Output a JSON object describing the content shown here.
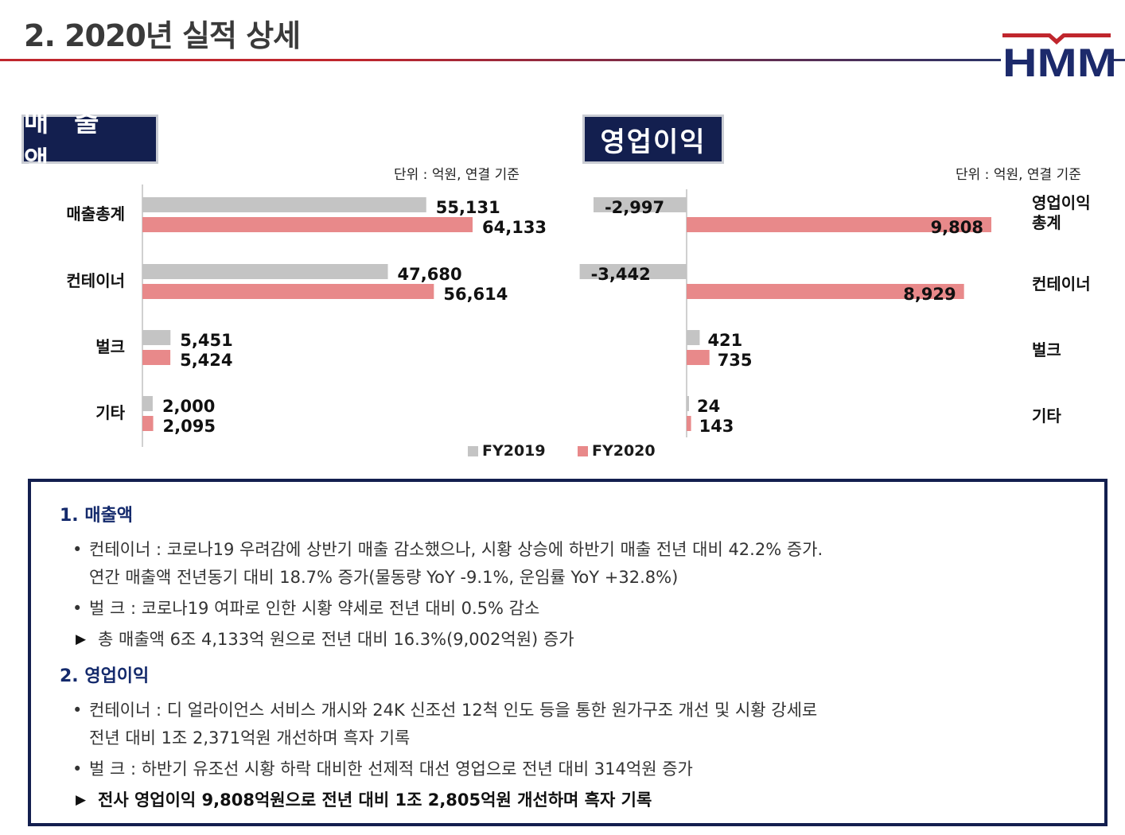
{
  "page": {
    "title": "2. 2020년 실적 상세"
  },
  "logo": {
    "text": "HMM",
    "colors": {
      "navy": "#1c2a6b",
      "red": "#c0262d"
    }
  },
  "colors": {
    "fy2019": "#c4c4c4",
    "fy2020": "#e8898a",
    "navy": "#131f4f"
  },
  "legend": {
    "fy2019": "FY2019",
    "fy2020": "FY2020"
  },
  "chart_data": [
    {
      "type": "bar",
      "orientation": "horizontal",
      "section_label": "매 출 액",
      "unit_note": "단위 : 억원, 연결 기준",
      "categories": [
        "매출총계",
        "컨테이너",
        "벌크",
        "기타"
      ],
      "series": [
        {
          "name": "FY2019",
          "values": [
            55131,
            47680,
            5451,
            2000
          ]
        },
        {
          "name": "FY2020",
          "values": [
            64133,
            56614,
            5424,
            2095
          ]
        }
      ],
      "value_labels": {
        "FY2019": [
          "55,131",
          "47,680",
          "5,451",
          "2,000"
        ],
        "FY2020": [
          "64,133",
          "56,614",
          "5,424",
          "2,095"
        ]
      },
      "xlim": [
        0,
        65000
      ],
      "grid": false,
      "legend_position": "bottom"
    },
    {
      "type": "bar",
      "orientation": "horizontal",
      "section_label": "영업이익",
      "unit_note": "단위 : 억원, 연결 기준",
      "categories": [
        "영업이익 총계",
        "컨테이너",
        "벌크",
        "기타"
      ],
      "category_lines": [
        [
          "영업이익",
          "총계"
        ],
        [
          "컨테이너"
        ],
        [
          "벌크"
        ],
        [
          "기타"
        ]
      ],
      "series": [
        {
          "name": "FY2019",
          "values": [
            -2997,
            -3442,
            421,
            24
          ]
        },
        {
          "name": "FY2020",
          "values": [
            9808,
            8929,
            735,
            143
          ]
        }
      ],
      "value_labels": {
        "FY2019": [
          "-2,997",
          "-3,442",
          "421",
          "24"
        ],
        "FY2020": [
          "9,808",
          "8,929",
          "735",
          "143"
        ]
      },
      "xlim": [
        -3500,
        10000
      ],
      "grid": false,
      "legend_position": "bottom"
    }
  ],
  "summary": {
    "revenue": {
      "heading": "1. 매출액",
      "bullets": [
        {
          "line1": "컨테이너 : 코로나19 우려감에 상반기 매출 감소했으나, 시황 상승에 하반기 매출 전년 대비 42.2% 증가.",
          "line2": "연간 매출액 전년동기 대비 18.7% 증가(물동량 YoY -9.1%, 운임률 YoY +32.8%)"
        },
        {
          "line1": "벌 크 : 코로나19 여파로 인한 시황 약세로 전년 대비 0.5% 감소",
          "line2": ""
        }
      ],
      "conclusion": "총 매출액 6조 4,133억 원으로 전년 대비 16.3%(9,002억원) 증가"
    },
    "operating": {
      "heading": "2. 영업이익",
      "bullets": [
        {
          "line1": "컨테이너 : 디 얼라이언스 서비스 개시와 24K 신조선 12척 인도 등을 통한 원가구조 개선 및 시황 강세로",
          "line2": "전년 대비 1조 2,371억원 개선하며 흑자 기록"
        },
        {
          "line1": "벌 크 : 하반기 유조선 시황 하락 대비한 선제적 대선 영업으로 전년 대비 314억원 증가",
          "line2": ""
        }
      ],
      "conclusion": "전사 영업이익 9,808억원으로 전년 대비 1조 2,805억원 개선하며 흑자 기록"
    }
  }
}
